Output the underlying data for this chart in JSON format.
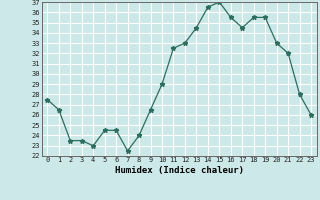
{
  "x": [
    0,
    1,
    2,
    3,
    4,
    5,
    6,
    7,
    8,
    9,
    10,
    11,
    12,
    13,
    14,
    15,
    16,
    17,
    18,
    19,
    20,
    21,
    22,
    23
  ],
  "y": [
    27.5,
    26.5,
    23.5,
    23.5,
    23.0,
    24.5,
    24.5,
    22.5,
    24.0,
    26.5,
    29.0,
    32.5,
    33.0,
    34.5,
    36.5,
    37.0,
    35.5,
    34.5,
    35.5,
    35.5,
    33.0,
    32.0,
    28.0,
    26.0
  ],
  "xlabel": "Humidex (Indice chaleur)",
  "ylim": [
    22,
    37
  ],
  "xlim": [
    -0.5,
    23.5
  ],
  "line_color": "#2d6e5e",
  "marker": "*",
  "bg_color": "#cde8e8",
  "grid_color": "#ffffff",
  "tick_labels": [
    "0",
    "1",
    "2",
    "3",
    "4",
    "5",
    "6",
    "7",
    "8",
    "9",
    "10",
    "11",
    "12",
    "13",
    "14",
    "15",
    "16",
    "17",
    "18",
    "19",
    "20",
    "21",
    "22",
    "23"
  ],
  "ytick_start": 22,
  "ytick_end": 37,
  "ytick_step": 1
}
